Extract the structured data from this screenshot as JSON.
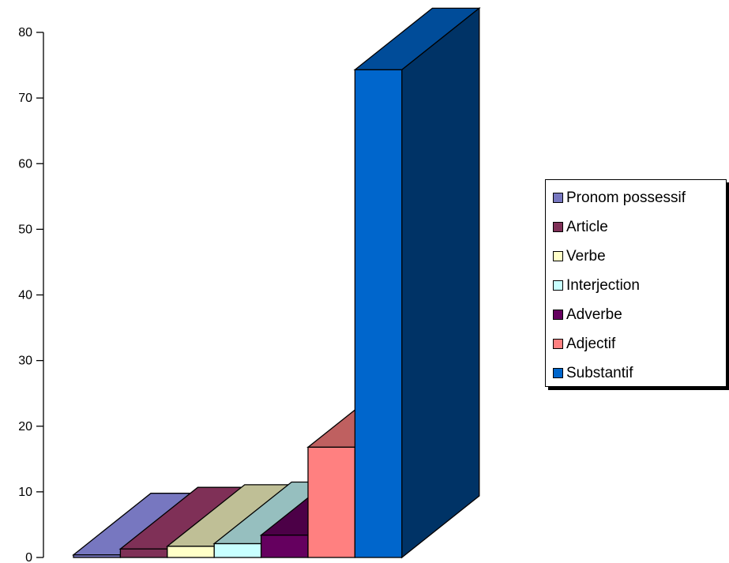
{
  "chart_data": {
    "type": "bar",
    "three_d": true,
    "grid": false,
    "legend_position": "right",
    "ylim": [
      0,
      80
    ],
    "yticks": [
      "0",
      "10",
      "20",
      "30",
      "40",
      "50",
      "60",
      "70",
      "80"
    ],
    "series": [
      {
        "name": "Pronom possessif",
        "value": 0.4,
        "color": "#7777c0",
        "top_color": "#7777c0",
        "side_color": "#7777c0"
      },
      {
        "name": "Article",
        "value": 1.3,
        "color": "#7f3057",
        "top_color": "#7f3057",
        "side_color": "#7f3057"
      },
      {
        "name": "Verbe",
        "value": 1.7,
        "color": "#ffffc8",
        "top_color": "#bfbf96",
        "side_color": "#bfbf96"
      },
      {
        "name": "Interjection",
        "value": 2.1,
        "color": "#c8ffff",
        "top_color": "#96bfbf",
        "side_color": "#96bfbf"
      },
      {
        "name": "Adverbe",
        "value": 3.4,
        "color": "#65005f",
        "top_color": "#4c0047",
        "side_color": "#4c0047"
      },
      {
        "name": "Adjectif",
        "value": 16.8,
        "color": "#ff8080",
        "top_color": "#bf6060",
        "side_color": "#bf6060"
      },
      {
        "name": "Substantif",
        "value": 74.3,
        "color": "#0066cc",
        "top_color": "#004c99",
        "side_color": "#003366"
      }
    ]
  }
}
